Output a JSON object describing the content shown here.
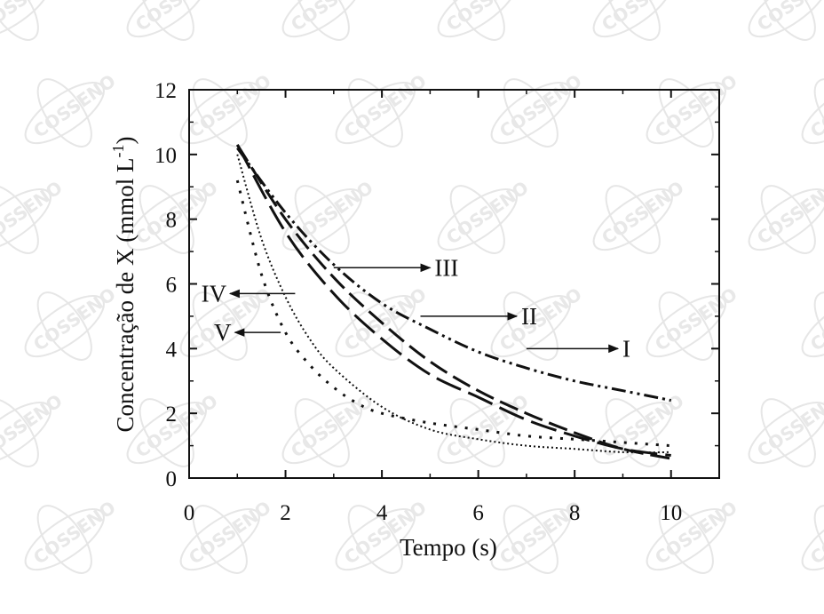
{
  "watermark": {
    "text": "COSSENO"
  },
  "chart_data": {
    "type": "line",
    "title": "",
    "xlabel": "Tempo (s)",
    "ylabel_main": "Concentração de X (mmol L",
    "ylabel_sup": "-1",
    "ylabel_end": ")",
    "xlim": [
      0,
      11
    ],
    "ylim": [
      0,
      12
    ],
    "xticks": [
      "0",
      "2",
      "4",
      "6",
      "8",
      "10"
    ],
    "yticks": [
      "0",
      "2",
      "4",
      "6",
      "8",
      "10",
      "12"
    ],
    "grid": false,
    "series": [
      {
        "name": "I",
        "style": "dash-dot-dot",
        "x": [
          1,
          2,
          3,
          4,
          5,
          6,
          7,
          8,
          9,
          10
        ],
        "y": [
          10.2,
          8.2,
          6.6,
          5.4,
          4.6,
          3.9,
          3.4,
          3.0,
          2.7,
          2.4
        ]
      },
      {
        "name": "II",
        "style": "dash",
        "x": [
          1,
          2,
          3,
          4,
          5,
          6,
          7,
          8,
          9,
          10
        ],
        "y": [
          10.3,
          8.0,
          6.2,
          4.8,
          3.6,
          2.7,
          2.0,
          1.4,
          0.9,
          0.6
        ]
      },
      {
        "name": "III",
        "style": "long-dash",
        "x": [
          1,
          2,
          3,
          4,
          5,
          6,
          7,
          8,
          9,
          10
        ],
        "y": [
          10.3,
          7.6,
          5.7,
          4.3,
          3.2,
          2.5,
          1.8,
          1.3,
          0.9,
          0.7
        ]
      },
      {
        "name": "IV",
        "style": "dot",
        "x": [
          1,
          1.5,
          2,
          2.5,
          3,
          4,
          5,
          6,
          7,
          8,
          9,
          10
        ],
        "y": [
          10.0,
          7.4,
          5.6,
          4.3,
          3.4,
          2.2,
          1.5,
          1.2,
          1.0,
          0.9,
          0.8,
          0.8
        ]
      },
      {
        "name": "V",
        "style": "sparse-dot",
        "x": [
          1,
          1.5,
          2,
          2.5,
          3,
          3.5,
          4,
          5,
          6,
          7,
          8,
          9,
          10
        ],
        "y": [
          9.2,
          6.3,
          4.5,
          3.5,
          2.8,
          2.3,
          2.0,
          1.7,
          1.5,
          1.3,
          1.2,
          1.1,
          1.0
        ]
      }
    ],
    "annotations": [
      {
        "label": "I",
        "x_start": 7.0,
        "y_start": 4.0,
        "x_end": 8.9,
        "y_end": 4.0,
        "direction": "right"
      },
      {
        "label": "II",
        "x_start": 4.8,
        "y_start": 5.0,
        "x_end": 6.8,
        "y_end": 5.0,
        "direction": "right"
      },
      {
        "label": "III",
        "x_start": 3.0,
        "y_start": 6.5,
        "x_end": 5.0,
        "y_end": 6.5,
        "direction": "right"
      },
      {
        "label": "IV",
        "x_start": 2.2,
        "y_start": 5.7,
        "x_end": 0.85,
        "y_end": 5.7,
        "direction": "left"
      },
      {
        "label": "V",
        "x_start": 1.9,
        "y_start": 4.5,
        "x_end": 0.95,
        "y_end": 4.5,
        "direction": "left"
      }
    ]
  }
}
